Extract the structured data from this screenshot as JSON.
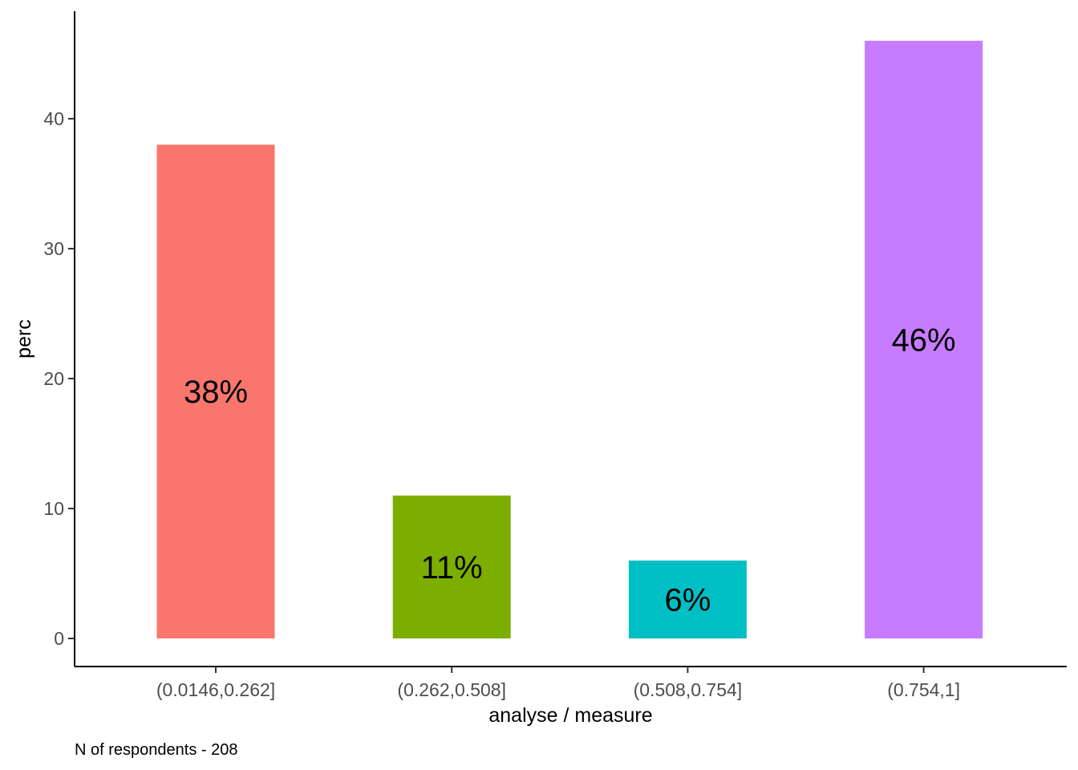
{
  "chart_data": {
    "type": "bar",
    "categories": [
      "(0.0146,0.262]",
      "(0.262,0.508]",
      "(0.508,0.754]",
      "(0.754,1]"
    ],
    "values": [
      38,
      11,
      6,
      46
    ],
    "data_labels": [
      "38%",
      "11%",
      "6%",
      "46%"
    ],
    "colors": [
      "#F8766D",
      "#7CAE00",
      "#00BFC4",
      "#C77CFF"
    ],
    "xlabel": "analyse / measure",
    "ylabel": "perc",
    "yticks": [
      0,
      10,
      20,
      30,
      40
    ],
    "ylim": [
      -2.2,
      48.3
    ],
    "grid": false,
    "legend": "none",
    "caption": "N of respondents - 208"
  }
}
